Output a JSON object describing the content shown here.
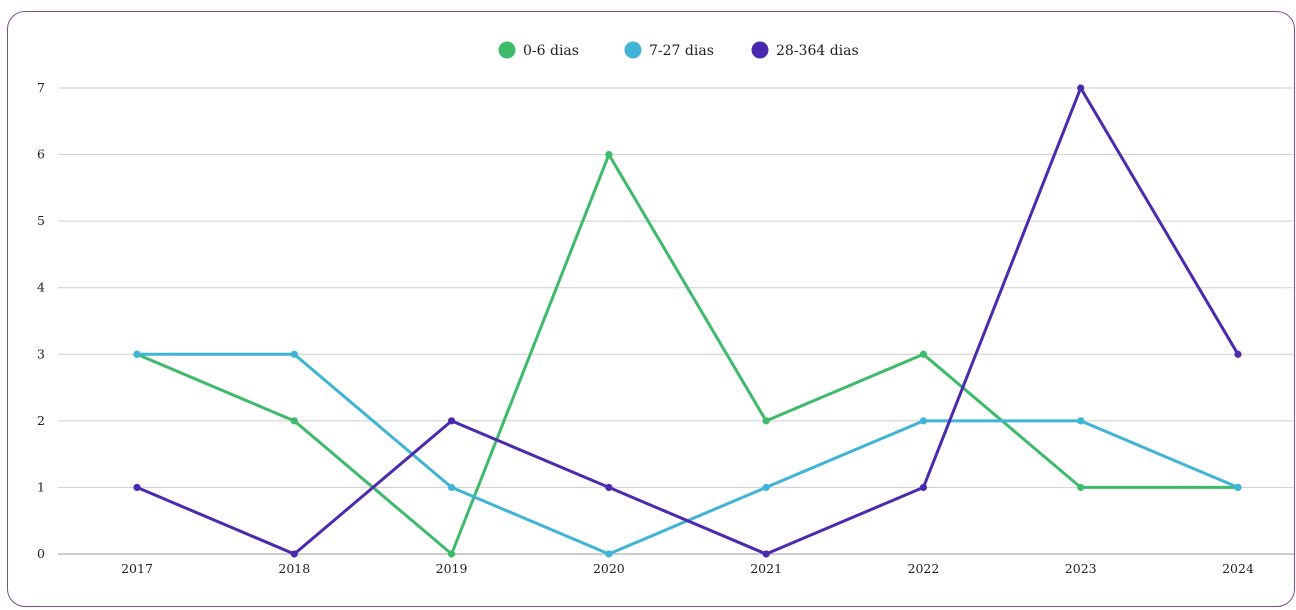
{
  "chart_data": {
    "type": "line",
    "title": "",
    "xlabel": "",
    "ylabel": "",
    "categories": [
      "2017",
      "2018",
      "2019",
      "2020",
      "2021",
      "2022",
      "2023",
      "2024"
    ],
    "ylim": [
      0,
      7
    ],
    "yticks": [
      "0",
      "1",
      "2",
      "3",
      "4",
      "5",
      "6",
      "7"
    ],
    "grid": true,
    "legend_position": "top-center",
    "series": [
      {
        "name": "0-6 dias",
        "color": "#3dbb6a",
        "values": [
          3,
          2,
          0,
          6,
          2,
          3,
          1,
          1
        ]
      },
      {
        "name": "7-27 dias",
        "color": "#3fb4d6",
        "values": [
          3,
          3,
          1,
          0,
          1,
          2,
          2,
          1
        ]
      },
      {
        "name": "28-364 dias",
        "color": "#4b2ab0",
        "values": [
          1,
          0,
          2,
          1,
          0,
          1,
          7,
          3
        ]
      }
    ]
  }
}
